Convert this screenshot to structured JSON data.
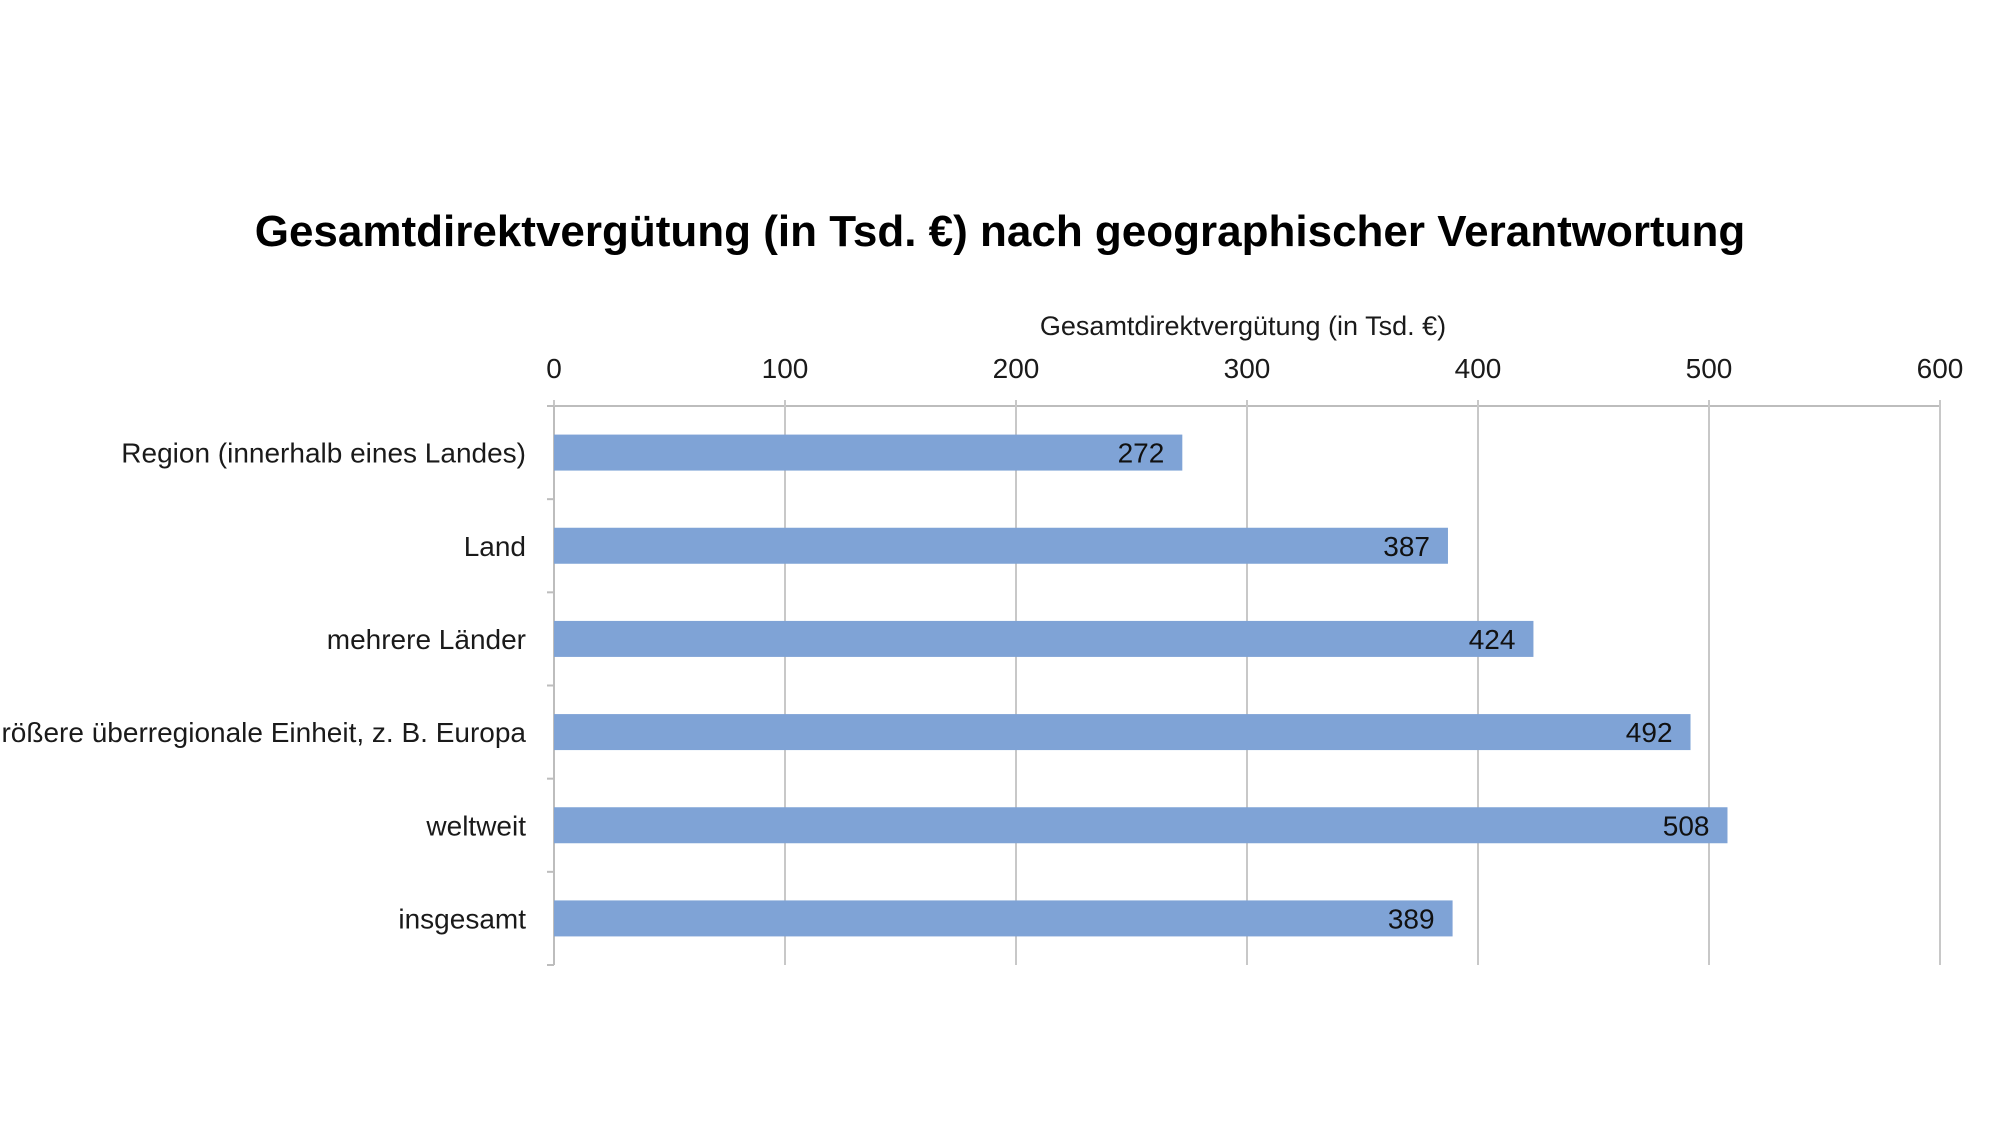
{
  "chart_data": {
    "type": "bar",
    "orientation": "horizontal",
    "title": "Gesamtdirektvergütung (in Tsd. €) nach geographischer Verantwortung",
    "xlabel": "Gesamtdirektvergütung (in Tsd. €)",
    "ylabel": "",
    "categories": [
      "Region (innerhalb eines Landes)",
      "Land",
      "mehrere Länder",
      "größere überregionale Einheit, z. B. Europa",
      "weltweit",
      "insgesamt"
    ],
    "values": [
      272,
      387,
      424,
      492,
      508,
      389
    ],
    "data_labels": [
      "272",
      "387",
      "424",
      "492",
      "508",
      "389"
    ],
    "xlim": [
      0,
      600
    ],
    "ticks": [
      0,
      100,
      200,
      300,
      400,
      500,
      600
    ],
    "tick_labels": [
      "0",
      "100",
      "200",
      "300",
      "400",
      "500",
      "600"
    ],
    "x_axis_position": "top",
    "grid": true,
    "legend": "none",
    "colors": {
      "bar": "#7fa3d6",
      "grid": "#c8c8c8",
      "axis": "#bdbdbd"
    }
  }
}
